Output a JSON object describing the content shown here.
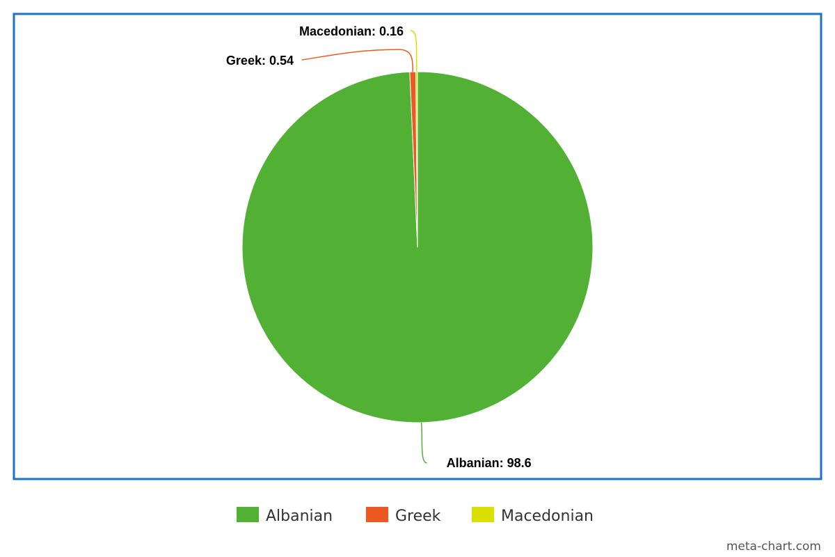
{
  "chart_data": {
    "type": "pie",
    "title": "",
    "slices": [
      {
        "label": "Albanian",
        "value": 98.6,
        "color": "#52b135"
      },
      {
        "label": "Greek",
        "value": 0.54,
        "color": "#ec5a22"
      },
      {
        "label": "Macedonian",
        "value": 0.16,
        "color": "#d9e000"
      }
    ],
    "data_labels": [
      "Albanian: 98.6",
      "Greek: 0.54",
      "Macedonian: 0.16"
    ],
    "legend": {
      "placement": "bottom",
      "entries": [
        "Albanian",
        "Greek",
        "Macedonian"
      ]
    }
  },
  "frame_color": "#1a73c5",
  "credit": "meta-chart.com"
}
